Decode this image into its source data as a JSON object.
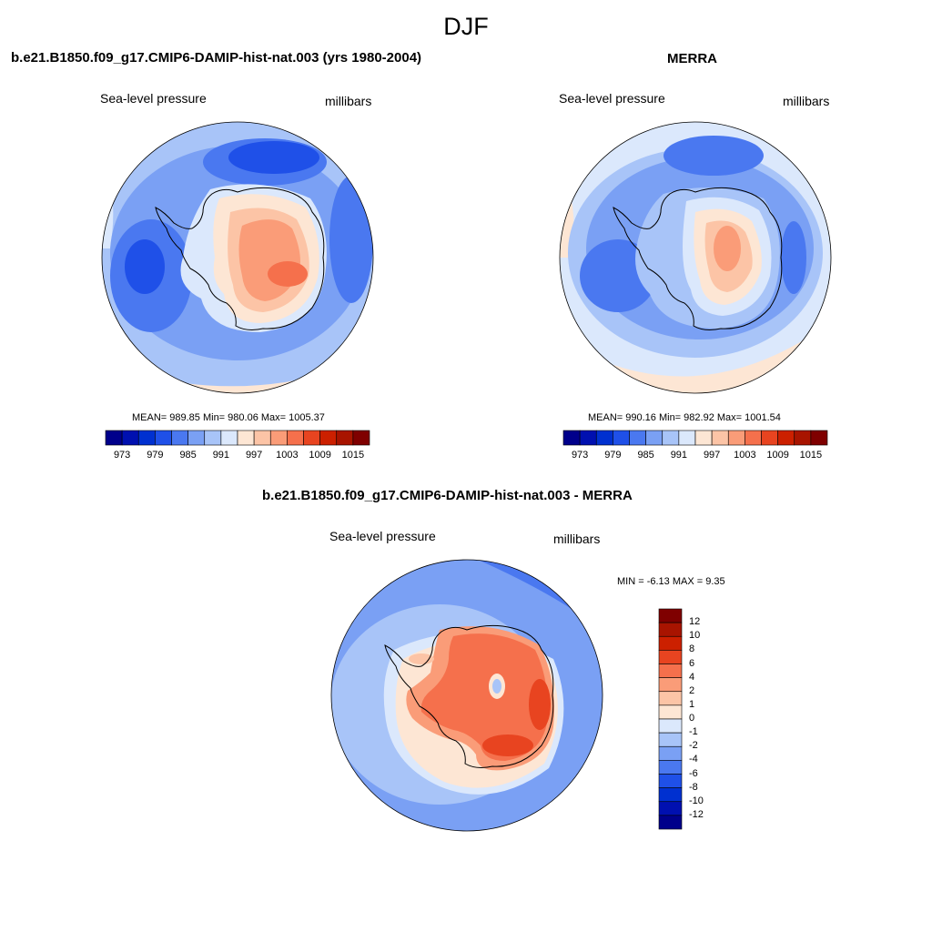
{
  "page": {
    "title": "DJF"
  },
  "panels": [
    {
      "title": "b.e21.B1850.f09_g17.CMIP6-DAMIP-hist-nat.003 (yrs 1980-2004)",
      "left_label": "Sea-level pressure",
      "right_label": "millibars",
      "stats": "MEAN= 989.85  Min= 980.06  Max= 1005.37"
    },
    {
      "title": "MERRA",
      "left_label": "Sea-level pressure",
      "right_label": "millibars",
      "stats": "MEAN= 990.16  Min= 982.92  Max= 1001.54"
    },
    {
      "title": "b.e21.B1850.f09_g17.CMIP6-DAMIP-hist-nat.003 - MERRA",
      "left_label": "Sea-level pressure",
      "right_label": "millibars",
      "stats": "MIN =  -6.13 MAX =   9.35"
    }
  ],
  "colorbar_abs": {
    "colors": [
      "#00008b",
      "#0010b0",
      "#0030d0",
      "#1f50e8",
      "#4a78f0",
      "#7aa0f4",
      "#a8c4f8",
      "#dbe8fc",
      "#fde6d4",
      "#fcc4a6",
      "#fa9c78",
      "#f5704c",
      "#e84420",
      "#cc2000",
      "#a81400",
      "#7f0000"
    ],
    "labels": [
      "973",
      "979",
      "985",
      "991",
      "997",
      "1003",
      "1009",
      "1015"
    ]
  },
  "colorbar_diff": {
    "colors": [
      "#00008b",
      "#0010b0",
      "#0030d0",
      "#1f50e8",
      "#4a78f0",
      "#7aa0f4",
      "#a8c4f8",
      "#dbe8fc",
      "#fde6d4",
      "#fcc4a6",
      "#fa9c78",
      "#f5704c",
      "#e84420",
      "#cc2000",
      "#a81400",
      "#7f0000"
    ],
    "labels": [
      "12",
      "10",
      "8",
      "6",
      "4",
      "2",
      "1",
      "0",
      "-1",
      "-2",
      "-4",
      "-6",
      "-8",
      "-10",
      "-12"
    ]
  },
  "map_colors": {
    "ocean_deep": "#4a78f0",
    "ocean_mid": "#7aa0f4",
    "ocean_light": "#a8c4f8",
    "near_zero": "#dbe8fc",
    "warm_1": "#fde6d4",
    "warm_2": "#fcc4a6",
    "warm_3": "#fa9c78",
    "warm_4": "#f5704c",
    "warm_5": "#e84420",
    "strong_low": "#1f50e8"
  }
}
